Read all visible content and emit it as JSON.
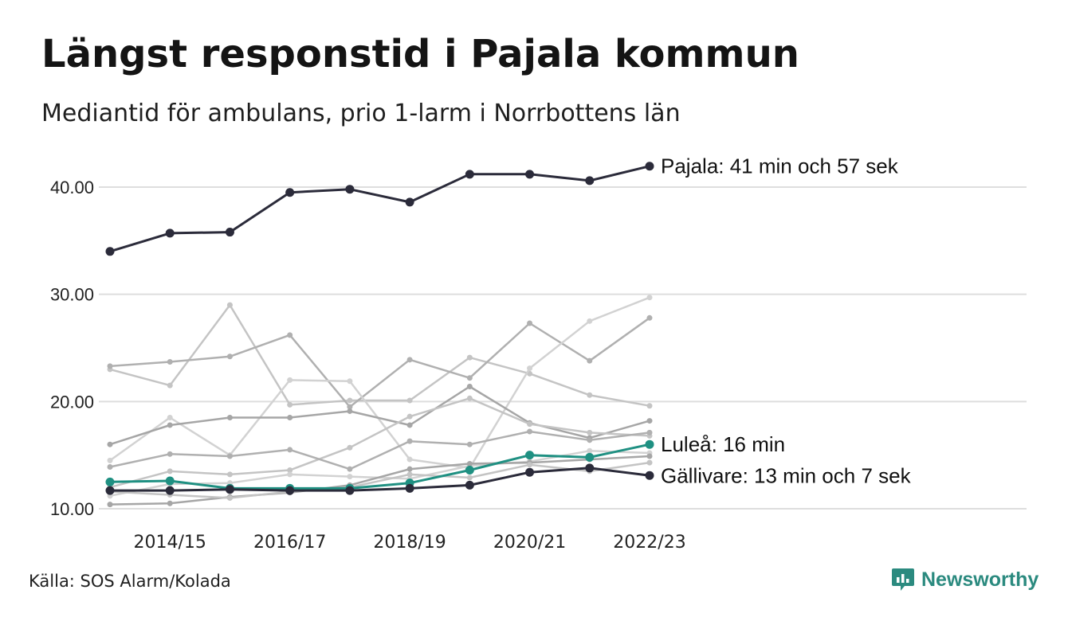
{
  "header": {
    "title": "Längst responstid i Pajala kommun",
    "subtitle": "Mediantid för ambulans, prio 1-larm i Norrbottens län"
  },
  "footer": {
    "source": "Källa: SOS Alarm/Kolada",
    "brand": "Newsworthy"
  },
  "icons": {
    "brand_logo": "newsworthy-logo-icon"
  },
  "colors": {
    "highlight_dark": "#2b2b3a",
    "highlight_teal": "#1f9082",
    "background_series": [
      "#c4c4c4",
      "#b0b0b0",
      "#d2d2d2",
      "#a6a6a6"
    ],
    "gridline": "#dedede",
    "brand": "#2b8a7f"
  },
  "chart_data": {
    "type": "line",
    "x": [
      "2013/14",
      "2014/15",
      "2015/16",
      "2016/17",
      "2017/18",
      "2018/19",
      "2019/20",
      "2020/21",
      "2021/22",
      "2022/23"
    ],
    "x_tick_labels": [
      "2014/15",
      "2016/17",
      "2018/19",
      "2020/21",
      "2022/23"
    ],
    "y_tick_labels": [
      "10.00",
      "20.00",
      "30.00",
      "40.00"
    ],
    "ylim": [
      9.8,
      43
    ],
    "grid": true,
    "legend": "none",
    "highlighted_series": [
      {
        "label": "Pajala: 41 min och 57 sek",
        "color": "dark",
        "values": [
          34.0,
          35.7,
          35.8,
          39.5,
          39.8,
          38.6,
          41.2,
          41.2,
          40.6,
          41.95
        ]
      },
      {
        "label": "Luleå: 16 min",
        "color": "teal",
        "values": [
          12.5,
          12.6,
          11.9,
          11.9,
          11.9,
          12.4,
          13.6,
          15.0,
          14.8,
          16.0
        ]
      },
      {
        "label": "Gällivare: 13 min och 7 sek",
        "color": "dark",
        "values": [
          11.7,
          11.7,
          11.8,
          11.7,
          11.7,
          11.9,
          12.2,
          13.4,
          13.8,
          13.1
        ]
      }
    ],
    "background_series": [
      {
        "values": [
          23.0,
          21.5,
          29.0,
          19.7,
          20.1,
          20.1,
          24.1,
          22.6,
          20.6,
          19.6
        ]
      },
      {
        "values": [
          23.3,
          23.7,
          24.2,
          26.2,
          19.5,
          23.9,
          22.2,
          27.3,
          23.8,
          27.8
        ]
      },
      {
        "values": [
          14.5,
          18.5,
          15.0,
          22.0,
          21.9,
          14.6,
          13.8,
          23.1,
          27.5,
          29.7
        ]
      },
      {
        "values": [
          16.0,
          17.8,
          18.5,
          18.5,
          19.1,
          17.8,
          21.4,
          18.0,
          16.6,
          18.2
        ]
      },
      {
        "values": [
          12.0,
          13.5,
          13.2,
          13.6,
          15.7,
          18.6,
          20.3,
          17.9,
          17.1,
          16.8
        ]
      },
      {
        "values": [
          13.9,
          15.1,
          14.9,
          15.5,
          13.7,
          16.3,
          16.0,
          17.2,
          16.4,
          17.1
        ]
      },
      {
        "values": [
          11.2,
          12.3,
          12.4,
          13.2,
          13.0,
          12.8,
          14.0,
          14.4,
          15.4,
          15.2
        ]
      },
      {
        "values": [
          10.4,
          10.5,
          11.1,
          11.5,
          12.2,
          13.7,
          14.2,
          14.3,
          14.6,
          14.9
        ]
      },
      {
        "values": [
          11.6,
          11.3,
          11.0,
          11.6,
          12.0,
          13.2,
          12.9,
          14.1,
          13.5,
          14.3
        ]
      }
    ]
  }
}
